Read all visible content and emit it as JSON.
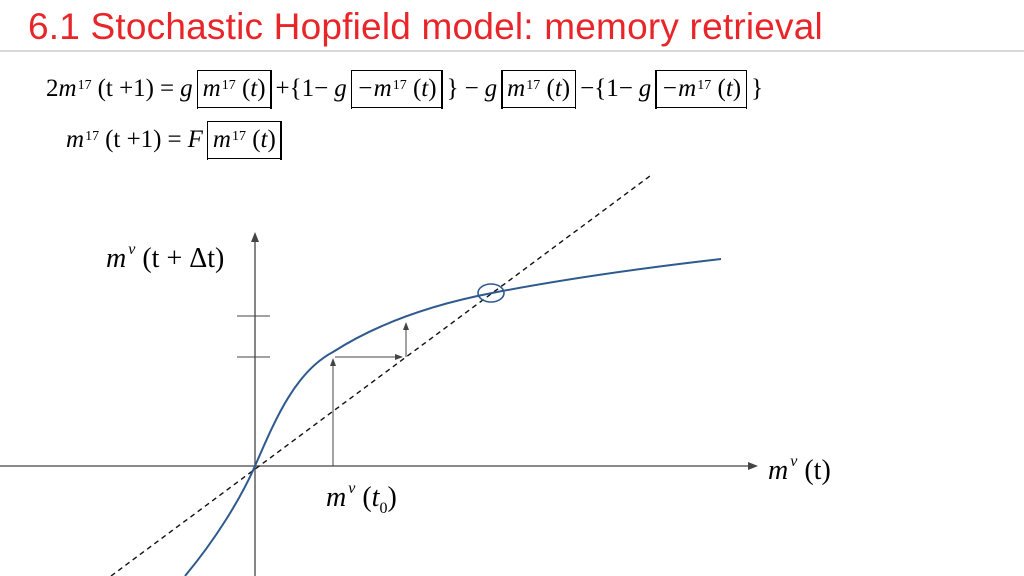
{
  "slide": {
    "title": "6.1 Stochastic Hopfield model: memory retrieval"
  },
  "equations": {
    "eq1": {
      "lhs_coef": "2",
      "m": "m",
      "superscript": "17",
      "t_plus_1": "(t +1)",
      "equals": "=",
      "g": "g",
      "t": "t",
      "plus": "+",
      "brace_open_one_minus": "{1−",
      "minus_m": "−m",
      "brace_close": "}",
      "minus": "−",
      "minus_brace_one_minus": "−{1−"
    },
    "eq2": {
      "m": "m",
      "superscript": "17",
      "t_plus_1": "(t +1)",
      "equals": "=",
      "F": "F",
      "t": "t"
    }
  },
  "diagram": {
    "y_axis_label": {
      "m": "m",
      "nu": "ν",
      "arg": "(t + Δt)"
    },
    "x_axis_label": {
      "m": "m",
      "nu": "ν",
      "arg": "(t)"
    },
    "start_label": {
      "m": "m",
      "nu": "ν",
      "t": "t",
      "sub": "0"
    },
    "colors": {
      "curve": "#2e5a8e",
      "axes": "#444444",
      "title": "#e8262a"
    },
    "elements": [
      "sigmoid-curve",
      "identity-line",
      "fixed-point-marker",
      "iteration-arrows"
    ]
  }
}
